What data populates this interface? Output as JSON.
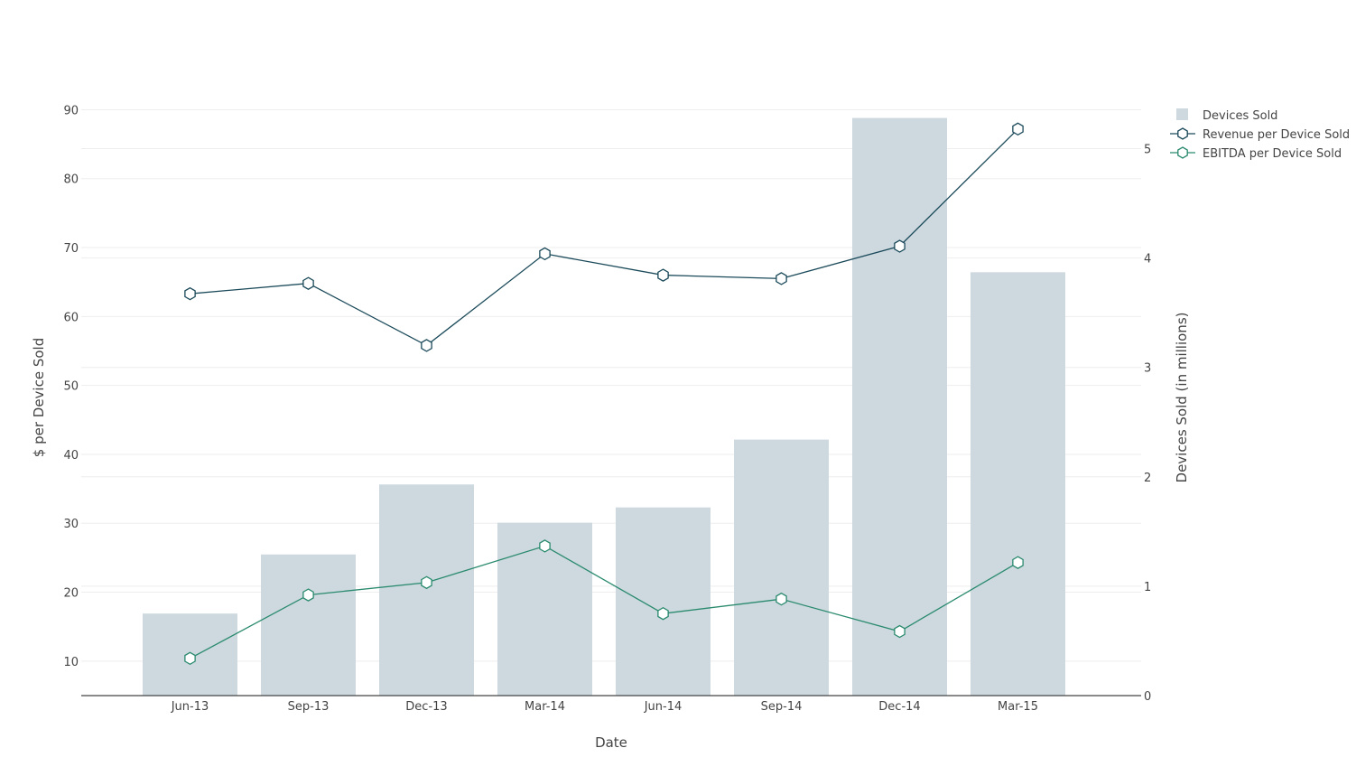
{
  "chart_data": {
    "type": "bar",
    "categories": [
      "Jun-13",
      "Sep-13",
      "Dec-13",
      "Mar-14",
      "Jun-14",
      "Sep-14",
      "Dec-14",
      "Mar-15"
    ],
    "xlabel": "Date",
    "ylabel_left": "$ per Device Sold",
    "ylabel_right": "Devices Sold (in millions)",
    "left_axis": {
      "range": [
        5,
        91.5
      ],
      "ticks": [
        10,
        20,
        30,
        40,
        50,
        60,
        70,
        80,
        90
      ]
    },
    "right_axis": {
      "range": [
        0,
        5.45
      ],
      "ticks": [
        0,
        1,
        2,
        3,
        4,
        5
      ]
    },
    "grid": true,
    "legend_position": "top-right",
    "series": [
      {
        "name": "Devices Sold",
        "type": "bar",
        "axis": "right",
        "color": "#cdd9df",
        "values": [
          0.75,
          1.29,
          1.93,
          1.58,
          1.72,
          2.34,
          5.28,
          3.87
        ]
      },
      {
        "name": "Revenue per Device Sold",
        "type": "line",
        "axis": "left",
        "marker": "hexagon",
        "color": "#1b4a5a",
        "values": [
          63.3,
          64.8,
          55.8,
          69.1,
          66.0,
          65.5,
          70.2,
          87.2
        ]
      },
      {
        "name": "EBITDA per Device Sold",
        "type": "line",
        "axis": "left",
        "marker": "hexagon",
        "color": "#2a8a6e",
        "values": [
          10.4,
          19.6,
          21.4,
          26.7,
          16.9,
          19.0,
          14.3,
          24.3
        ]
      }
    ]
  }
}
